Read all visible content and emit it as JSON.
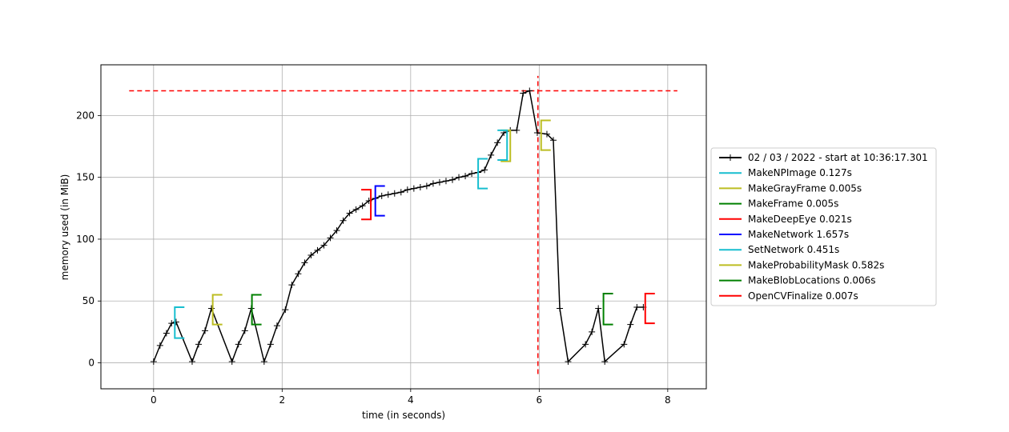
{
  "chart_data": {
    "type": "line",
    "title": "",
    "xlabel": "time (in seconds)",
    "ylabel": "memory used (in MiB)",
    "xlim": [
      -0.82,
      8.6
    ],
    "ylim": [
      -21,
      241
    ],
    "x_ticks": [
      0,
      2,
      4,
      6,
      8
    ],
    "y_ticks": [
      0,
      50,
      100,
      150,
      200
    ],
    "grid": true,
    "legend_position": "center-right outside",
    "series": [
      {
        "name": "02 / 03 / 2022 - start at 10:36:17.301",
        "color": "#000000",
        "marker": "+",
        "x": [
          0,
          0.1,
          0.2,
          0.28,
          0.35,
          0.6,
          0.7,
          0.8,
          0.9,
          1.22,
          1.32,
          1.42,
          1.52,
          1.72,
          1.82,
          1.92,
          2.05,
          2.15,
          2.25,
          2.35,
          2.45,
          2.55,
          2.65,
          2.75,
          2.85,
          2.95,
          3.05,
          3.15,
          3.25,
          3.35,
          3.45,
          3.55,
          3.65,
          3.75,
          3.85,
          3.95,
          4.05,
          4.15,
          4.25,
          4.35,
          4.45,
          4.55,
          4.65,
          4.75,
          4.85,
          4.95,
          5.05,
          5.15,
          5.25,
          5.35,
          5.45,
          5.55,
          5.65,
          5.75,
          5.85,
          5.97,
          6.12,
          6.22,
          6.32,
          6.45,
          6.72,
          6.82,
          6.92,
          7.02,
          7.32,
          7.42,
          7.52,
          7.62
        ],
        "y": [
          1,
          14,
          24,
          32,
          33,
          1,
          15,
          26,
          44,
          1,
          15,
          26,
          44,
          1,
          15,
          30,
          43,
          63,
          72,
          81,
          87,
          91,
          95,
          101,
          107,
          115,
          121,
          124,
          127,
          131,
          133,
          135,
          136,
          137,
          138,
          140,
          141,
          142,
          143,
          145,
          146,
          147,
          148,
          150,
          151,
          153,
          154,
          156,
          168,
          178,
          186,
          188,
          188,
          218,
          220,
          186,
          185,
          180,
          44,
          1,
          15,
          25,
          44,
          1,
          15,
          31,
          45,
          45
        ]
      }
    ],
    "brackets": [
      {
        "name": "MakeNPImage 0.127s",
        "color": "#17becf",
        "x": 0.33,
        "y_start": 20,
        "y_end": 45,
        "dir": 1
      },
      {
        "name": "MakeGrayFrame 0.005s",
        "color": "#bcbd22",
        "x": 0.92,
        "y_start": 31,
        "y_end": 55,
        "dir": 1
      },
      {
        "name": "MakeFrame 0.005s",
        "color": "#008000",
        "x": 1.53,
        "y_start": 31,
        "y_end": 55,
        "dir": 1
      },
      {
        "name": "MakeDeepEye 0.021s",
        "color": "#ff0000",
        "x": 3.38,
        "y_start": 116,
        "y_end": 140,
        "dir": -1
      },
      {
        "name": "MakeNetwork 1.657s",
        "color": "#0000ff",
        "x": 3.45,
        "y_start": 119,
        "y_end": 143,
        "dir": 1
      },
      {
        "name": "SetNetwork 0.451s",
        "color": "#17becf",
        "x": 5.05,
        "y_start": 141,
        "y_end": 165,
        "dir": 1
      },
      {
        "name": "MakeProbabilityMask 0.582s",
        "color": "#bcbd22",
        "x": 5.55,
        "y_start": 163,
        "y_end": 188,
        "dir": -1
      },
      {
        "name": "MakeBlobLocations 0.006s",
        "color": "#008000",
        "x": 7.0,
        "y_start": 31,
        "y_end": 56,
        "dir": 1
      },
      {
        "name": "OpenCVFinalize 0.007s",
        "color": "#ff0000",
        "x": 7.65,
        "y_start": 32,
        "y_end": 56,
        "dir": 1
      }
    ],
    "extra_brackets": [
      {
        "color": "#bcbd22",
        "x": 6.03,
        "y_start": 172,
        "y_end": 196,
        "dir": 1
      },
      {
        "color": "#17becf",
        "x": 5.5,
        "y_start": 164,
        "y_end": 188,
        "dir": -1
      }
    ],
    "reference_lines": [
      {
        "orientation": "horizontal",
        "y": 220,
        "x_from": -0.38,
        "x_to": 8.15,
        "color": "#ff0000",
        "style": "dashed"
      },
      {
        "orientation": "vertical",
        "x": 5.98,
        "y_from": -9,
        "y_to": 232,
        "color": "#ff0000",
        "style": "dashed"
      }
    ]
  }
}
